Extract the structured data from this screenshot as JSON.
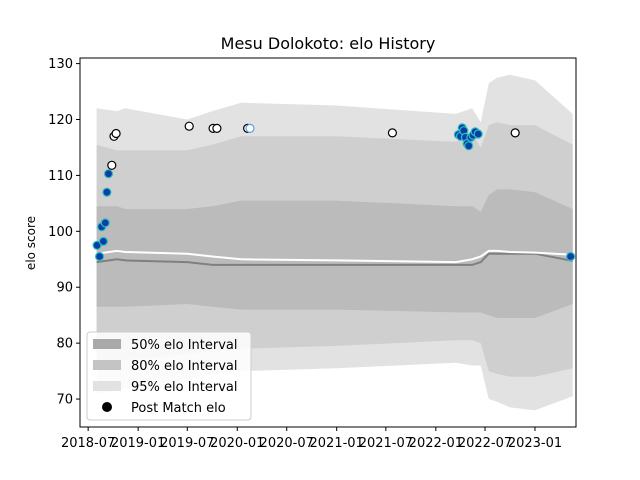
{
  "chart_data": {
    "type": "area",
    "title": "Mesu Dolokoto: elo History",
    "xlabel": "",
    "ylabel": "elo score",
    "xlim": [
      "2018-06-01",
      "2023-06-01"
    ],
    "ylim": [
      65,
      131
    ],
    "x_ticks": [
      "2018-07",
      "2019-01",
      "2019-07",
      "2020-01",
      "2020-07",
      "2021-01",
      "2021-07",
      "2022-01",
      "2022-07",
      "2023-01"
    ],
    "x_tick_dates": [
      "2018-07-01",
      "2019-01-01",
      "2019-07-01",
      "2020-01-01",
      "2020-07-01",
      "2021-01-01",
      "2021-07-01",
      "2022-01-01",
      "2022-07-01",
      "2023-01-01"
    ],
    "y_ticks": [
      70,
      80,
      90,
      100,
      110,
      120,
      130
    ],
    "legend": {
      "position": "lower-left",
      "entries": [
        {
          "label": "50% elo Interval",
          "color": "#a9a9a9",
          "marker": "patch"
        },
        {
          "label": "80% elo Interval",
          "color": "#c4c4c4",
          "marker": "patch"
        },
        {
          "label": "95% elo Interval",
          "color": "#e2e2e2",
          "marker": "patch"
        },
        {
          "label": "Post Match elo",
          "color": "#000000",
          "marker": "dot"
        }
      ]
    },
    "colors": {
      "band95": "#e2e2e2",
      "band80": "#cfcfcf",
      "band50": "#bbbbbb",
      "mean_line": "#ffffff",
      "median_line": "#808080",
      "dot_fill": "#0b3fa8",
      "dot_edge": "#2bbfbf",
      "hollow_fill": "#ffffff",
      "hollow_edge": "#000000"
    },
    "bands": {
      "dates": [
        "2018-08-01",
        "2018-10-15",
        "2018-11-15",
        "2019-07-01",
        "2019-10-01",
        "2020-01-15",
        "2021-01-01",
        "2022-03-15",
        "2022-05-15",
        "2022-06-15",
        "2022-07-15",
        "2022-08-15",
        "2022-10-01",
        "2023-01-01",
        "2023-05-20"
      ],
      "p95_low": [
        71.0,
        71.5,
        72.0,
        73.5,
        74.5,
        75.0,
        75.5,
        76.5,
        76.0,
        76.0,
        70.0,
        69.5,
        68.5,
        68.0,
        70.5
      ],
      "p95_high": [
        122.0,
        121.5,
        122.0,
        120.0,
        121.5,
        123.0,
        122.5,
        121.0,
        122.0,
        119.5,
        126.5,
        127.5,
        128.0,
        127.0,
        121.0
      ],
      "p80_low": [
        76.5,
        77.0,
        77.0,
        78.0,
        78.5,
        79.0,
        79.5,
        80.5,
        80.5,
        80.0,
        75.0,
        74.5,
        74.0,
        74.0,
        75.5
      ],
      "p80_high": [
        115.5,
        114.5,
        114.5,
        114.5,
        115.5,
        117.0,
        117.0,
        116.0,
        117.5,
        115.0,
        119.0,
        119.5,
        119.0,
        119.0,
        115.5
      ],
      "p50_low": [
        86.5,
        86.5,
        86.5,
        87.0,
        86.5,
        86.0,
        86.0,
        85.5,
        85.5,
        85.5,
        85.0,
        84.5,
        84.5,
        84.5,
        87.0
      ],
      "p50_high": [
        104.5,
        104.5,
        104.0,
        104.0,
        104.5,
        105.5,
        105.5,
        104.5,
        104.5,
        103.5,
        106.5,
        107.5,
        107.5,
        107.0,
        104.0
      ],
      "mean": [
        96.0,
        96.5,
        96.3,
        96.0,
        95.5,
        95.0,
        94.8,
        94.5,
        95.0,
        95.5,
        96.5,
        96.5,
        96.3,
        96.2,
        95.8
      ],
      "median": [
        94.5,
        95.0,
        94.8,
        94.5,
        94.0,
        94.0,
        94.0,
        94.0,
        94.0,
        94.5,
        96.0,
        96.0,
        96.0,
        96.0,
        94.7
      ]
    },
    "points": [
      {
        "date": "2018-08-03",
        "elo": 97.5,
        "style": "filled"
      },
      {
        "date": "2018-08-12",
        "elo": 95.5,
        "style": "filled"
      },
      {
        "date": "2018-08-20",
        "elo": 100.8,
        "style": "filled"
      },
      {
        "date": "2018-08-26",
        "elo": 98.2,
        "style": "filled"
      },
      {
        "date": "2018-09-02",
        "elo": 101.5,
        "style": "filled"
      },
      {
        "date": "2018-09-08",
        "elo": 107.0,
        "style": "filled"
      },
      {
        "date": "2018-09-14",
        "elo": 110.3,
        "style": "filled"
      },
      {
        "date": "2018-09-26",
        "elo": 111.8,
        "style": "hollow"
      },
      {
        "date": "2018-10-04",
        "elo": 117.0,
        "style": "hollow"
      },
      {
        "date": "2018-10-12",
        "elo": 117.5,
        "style": "hollow"
      },
      {
        "date": "2019-07-08",
        "elo": 118.8,
        "style": "hollow"
      },
      {
        "date": "2019-10-04",
        "elo": 118.4,
        "style": "hollow"
      },
      {
        "date": "2019-10-18",
        "elo": 118.4,
        "style": "hollow"
      },
      {
        "date": "2020-02-08",
        "elo": 118.4,
        "style": "hollow"
      },
      {
        "date": "2020-02-17",
        "elo": 118.4,
        "style": "light"
      },
      {
        "date": "2021-07-25",
        "elo": 117.6,
        "style": "hollow"
      },
      {
        "date": "2022-03-25",
        "elo": 117.3,
        "style": "filled"
      },
      {
        "date": "2022-04-02",
        "elo": 117.0,
        "style": "filled"
      },
      {
        "date": "2022-04-08",
        "elo": 118.5,
        "style": "filled"
      },
      {
        "date": "2022-04-14",
        "elo": 118.0,
        "style": "filled"
      },
      {
        "date": "2022-04-20",
        "elo": 116.8,
        "style": "filled"
      },
      {
        "date": "2022-04-26",
        "elo": 115.7,
        "style": "filled"
      },
      {
        "date": "2022-05-02",
        "elo": 115.3,
        "style": "filled"
      },
      {
        "date": "2022-05-10",
        "elo": 116.8,
        "style": "filled"
      },
      {
        "date": "2022-05-18",
        "elo": 117.2,
        "style": "filled"
      },
      {
        "date": "2022-05-26",
        "elo": 117.8,
        "style": "filled"
      },
      {
        "date": "2022-06-06",
        "elo": 117.4,
        "style": "filled"
      },
      {
        "date": "2022-10-20",
        "elo": 117.6,
        "style": "hollow"
      },
      {
        "date": "2023-05-12",
        "elo": 95.5,
        "style": "filled"
      }
    ]
  }
}
